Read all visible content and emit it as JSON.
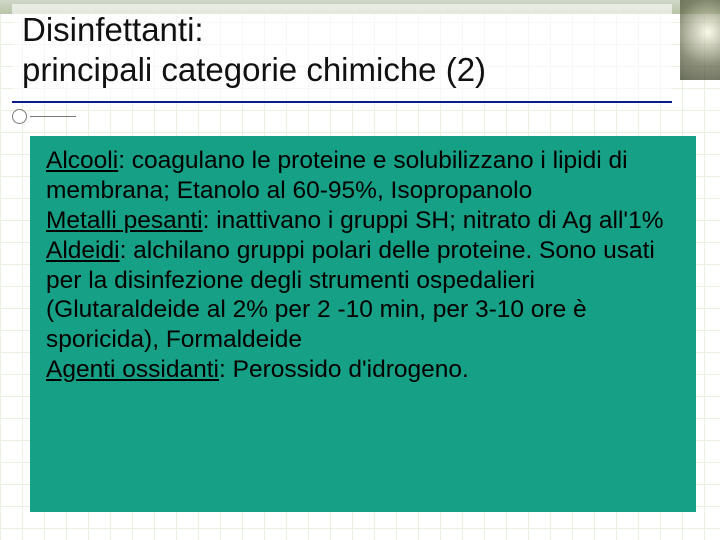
{
  "slide": {
    "title_line1": "Disinfettanti:",
    "title_line2": "principali categorie chimiche (2)",
    "background_color": "#ffffff",
    "grid_color": "#e8f0e0",
    "title_underline_color": "#0a1a8a",
    "content_bg_color": "#16a085",
    "title_fontsize": 33,
    "body_fontsize": 24.5,
    "entries": [
      {
        "term": "Alcooli",
        "text": ": coagulano le proteine e solubilizzano i lipidi di membrana; Etanolo al 60-95%, Isopropanolo"
      },
      {
        "term": "Metalli pesanti",
        "text": ": inattivano i gruppi SH; nitrato di Ag all'1%"
      },
      {
        "term": "Aldeidi",
        "text": ": alchilano gruppi polari delle proteine. Sono usati per la disinfezione degli strumenti ospedalieri (Glutaraldeide al 2% per 2 -10 min, per 3-10 ore è sporicida), Formaldeide"
      },
      {
        "term": "Agenti ossidanti",
        "text": ": Perossido d'idrogeno."
      }
    ]
  }
}
